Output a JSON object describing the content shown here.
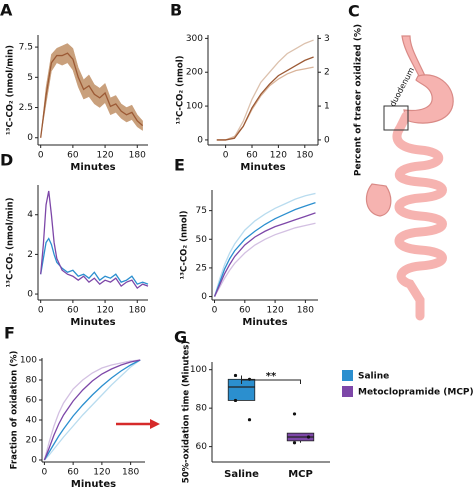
{
  "chart_data": [
    {
      "type": "line",
      "label": "A",
      "xlabel": "Minutes",
      "ylabel": "¹³C-CO₂ (nmol/min)",
      "xlim": [
        -5,
        200
      ],
      "xticks": [
        0,
        60,
        120,
        180
      ],
      "ylim": [
        -0.6,
        8.5
      ],
      "yticks": [
        0,
        2.5,
        5,
        7.5
      ],
      "x": [
        0,
        10,
        20,
        30,
        40,
        50,
        60,
        70,
        80,
        90,
        100,
        110,
        120,
        130,
        140,
        150,
        160,
        170,
        180,
        190
      ],
      "series": [
        {
          "color": "#9c5a35",
          "band_color": "#c9a07c",
          "values": [
            0,
            3.5,
            6.2,
            6.8,
            6.8,
            7.0,
            6.5,
            5.0,
            4.0,
            4.3,
            3.6,
            3.3,
            3.7,
            2.6,
            2.8,
            2.2,
            1.9,
            2.1,
            1.4,
            1.0
          ],
          "lower": [
            0,
            2.8,
            5.5,
            6.2,
            6.0,
            6.2,
            5.6,
            4.2,
            3.2,
            3.4,
            2.8,
            2.5,
            2.9,
            1.9,
            2.1,
            1.6,
            1.3,
            1.5,
            0.9,
            0.6
          ],
          "upper": [
            0,
            4.2,
            6.9,
            7.4,
            7.6,
            7.8,
            7.4,
            5.8,
            4.8,
            5.2,
            4.4,
            4.1,
            4.5,
            3.3,
            3.5,
            2.8,
            2.5,
            2.7,
            1.9,
            1.4
          ]
        }
      ]
    },
    {
      "type": "line",
      "label": "B",
      "xlabel": "Minutes",
      "ylabel": "¹³C-CO₂ (nmol)",
      "y2label": "Percent of tracer oxidized (%)",
      "xlim": [
        -40,
        210
      ],
      "xticks": [
        0,
        60,
        120,
        180
      ],
      "ylim": [
        -15,
        310
      ],
      "yticks": [
        0,
        100,
        200,
        300
      ],
      "y2lim": [
        -0.15,
        3.1
      ],
      "y2ticks": [
        0,
        1,
        2,
        3
      ],
      "x": [
        -20,
        0,
        20,
        40,
        60,
        80,
        100,
        120,
        140,
        160,
        180,
        200
      ],
      "series": [
        {
          "color": "#dcc1ad",
          "values": [
            0,
            0,
            8,
            55,
            120,
            170,
            200,
            230,
            255,
            270,
            285,
            295
          ]
        },
        {
          "color": "#d9b49a",
          "axis": "y2",
          "values": [
            0,
            0,
            0.1,
            0.4,
            0.9,
            1.3,
            1.6,
            1.8,
            1.95,
            2.05,
            2.1,
            2.15
          ]
        },
        {
          "color": "#9c5a35",
          "values": [
            0,
            0,
            5,
            40,
            95,
            135,
            165,
            190,
            205,
            220,
            235,
            245
          ]
        }
      ]
    },
    {
      "type": "line",
      "label": "D",
      "xlabel": "Minutes",
      "ylabel": "¹³C-CO₂ (nmol/min)",
      "xlim": [
        -5,
        200
      ],
      "xticks": [
        0,
        60,
        120,
        180
      ],
      "ylim": [
        -0.3,
        5.5
      ],
      "yticks": [
        0,
        2,
        4
      ],
      "x": [
        0,
        5,
        10,
        15,
        20,
        25,
        30,
        40,
        50,
        60,
        70,
        80,
        90,
        100,
        110,
        120,
        130,
        140,
        150,
        160,
        170,
        180,
        190,
        200
      ],
      "series": [
        {
          "color": "#2b8fcf",
          "values": [
            1.0,
            1.8,
            2.6,
            2.8,
            2.5,
            2.0,
            1.6,
            1.3,
            1.1,
            1.2,
            0.9,
            1.0,
            0.8,
            1.1,
            0.7,
            0.9,
            0.8,
            1.0,
            0.6,
            0.7,
            0.9,
            0.5,
            0.6,
            0.5
          ]
        },
        {
          "color": "#7d47a8",
          "values": [
            1.0,
            2.5,
            4.5,
            5.2,
            4.0,
            2.6,
            1.8,
            1.2,
            1.0,
            0.9,
            0.7,
            0.9,
            0.6,
            0.8,
            0.5,
            0.7,
            0.6,
            0.8,
            0.4,
            0.6,
            0.7,
            0.3,
            0.5,
            0.4
          ]
        }
      ]
    },
    {
      "type": "line",
      "label": "E",
      "xlabel": "Minutes",
      "ylabel": "¹³C-CO₂ (nmol)",
      "xlim": [
        -5,
        205
      ],
      "xticks": [
        0,
        60,
        120,
        180
      ],
      "ylim": [
        -3,
        93
      ],
      "yticks": [
        0,
        25,
        50,
        75
      ],
      "x": [
        0,
        10,
        20,
        30,
        40,
        60,
        80,
        100,
        120,
        140,
        160,
        180,
        200
      ],
      "series": [
        {
          "color": "#b9dcef",
          "values": [
            0,
            15,
            28,
            38,
            46,
            58,
            66,
            72,
            77,
            81,
            85,
            88,
            90
          ]
        },
        {
          "color": "#d3c0e2",
          "values": [
            0,
            8,
            16,
            23,
            29,
            38,
            45,
            50,
            54,
            57,
            60,
            62,
            64
          ]
        },
        {
          "color": "#2b8fcf",
          "values": [
            0,
            12,
            24,
            33,
            40,
            50,
            57,
            63,
            68,
            72,
            76,
            79,
            82
          ]
        },
        {
          "color": "#7d47a8",
          "values": [
            0,
            10,
            20,
            28,
            35,
            45,
            52,
            57,
            61,
            64,
            67,
            70,
            73
          ]
        }
      ]
    },
    {
      "type": "line",
      "label": "F",
      "xlabel": "Minutes",
      "ylabel": "Fraction of oxidation (%)",
      "xlim": [
        -5,
        210
      ],
      "xticks": [
        0,
        60,
        120,
        180
      ],
      "ylim": [
        -2,
        102
      ],
      "yticks": [
        0,
        20,
        40,
        60,
        80,
        100
      ],
      "x": [
        0,
        10,
        20,
        30,
        40,
        60,
        80,
        100,
        120,
        140,
        160,
        180,
        200
      ],
      "series": [
        {
          "color": "#d3c0e2",
          "values": [
            0,
            18,
            34,
            47,
            57,
            71,
            80,
            87,
            92,
            95,
            97,
            99,
            100
          ]
        },
        {
          "color": "#b9dcef",
          "values": [
            0,
            5,
            11,
            17,
            23,
            34,
            45,
            55,
            65,
            75,
            84,
            93,
            100
          ]
        },
        {
          "color": "#2b8fcf",
          "values": [
            0,
            8,
            16,
            24,
            31,
            44,
            55,
            65,
            74,
            82,
            89,
            95,
            100
          ]
        },
        {
          "color": "#7d47a8",
          "values": [
            0,
            12,
            25,
            36,
            45,
            59,
            70,
            79,
            86,
            91,
            95,
            98,
            100
          ]
        }
      ]
    },
    {
      "type": "box",
      "label": "G",
      "ylabel": "50%-oxidation time (Minutes)",
      "ylim": [
        52,
        104
      ],
      "yticks": [
        60,
        80,
        100
      ],
      "categories": [
        "Saline",
        "MCP"
      ],
      "annotation": "**",
      "series": [
        {
          "name": "Saline",
          "color": "#2b8fcf",
          "box": {
            "low": 84,
            "q1": 84,
            "median": 91,
            "q3": 95,
            "high": 97
          },
          "points": [
            97,
            95,
            84,
            74
          ]
        },
        {
          "name": "Metoclopramide (MCP)",
          "color": "#7d47a8",
          "box": {
            "low": 62,
            "q1": 63,
            "median": 65,
            "q3": 67,
            "high": 67
          },
          "points": [
            77,
            65,
            62
          ]
        }
      ]
    }
  ],
  "diagram": {
    "label": "C",
    "annotation": "duodenum"
  }
}
